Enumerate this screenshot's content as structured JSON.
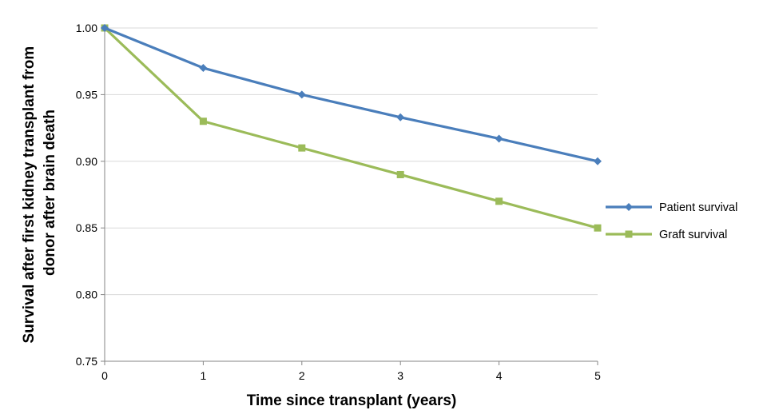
{
  "chart_data": {
    "type": "line",
    "title": "",
    "xlabel": "Time since transplant (years)",
    "ylabel_lines": [
      "Survival after first kidney transplant from",
      "donor after brain death"
    ],
    "x": [
      0,
      1,
      2,
      3,
      4,
      5
    ],
    "x_tick_labels": [
      "0",
      "1",
      "2",
      "3",
      "4",
      "5"
    ],
    "xlim": [
      0,
      5
    ],
    "ylim": [
      0.75,
      1.0
    ],
    "y_ticks": [
      0.75,
      0.8,
      0.85,
      0.9,
      0.95,
      1.0
    ],
    "y_tick_labels": [
      "0.75",
      "0.80",
      "0.85",
      "0.90",
      "0.95",
      "1.00"
    ],
    "grid": "horizontal",
    "legend_position": "right",
    "series": [
      {
        "name": "Patient survival",
        "values": [
          1.0,
          0.97,
          0.95,
          0.933,
          0.917,
          0.9
        ],
        "color": "#4A7EBB",
        "marker": "diamond"
      },
      {
        "name": "Graft survival",
        "values": [
          1.0,
          0.93,
          0.91,
          0.89,
          0.87,
          0.85
        ],
        "color": "#9BBB59",
        "marker": "square"
      }
    ]
  }
}
